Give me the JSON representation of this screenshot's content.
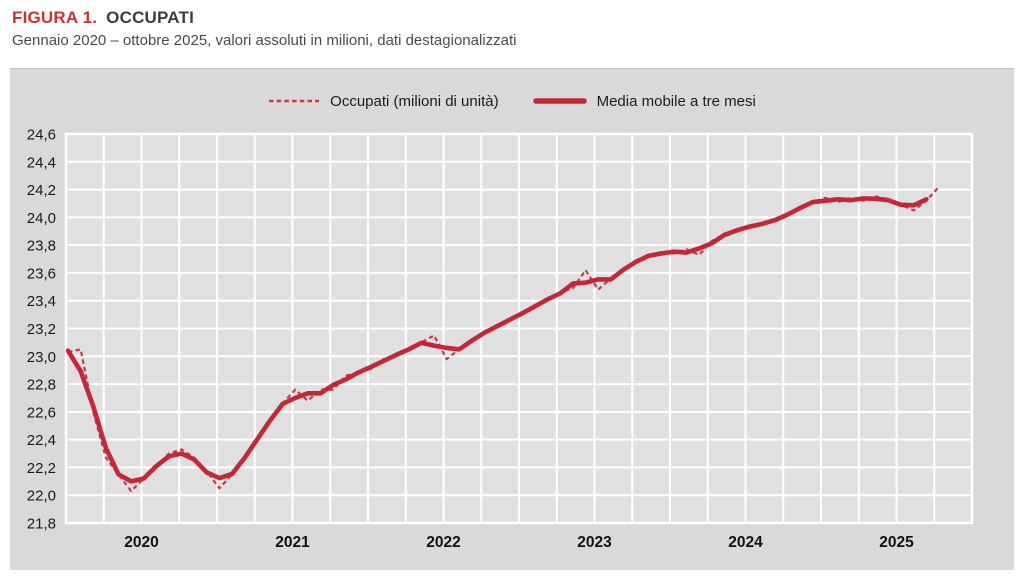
{
  "figure": {
    "label": "FIGURA 1.",
    "title": "OCCUPATI",
    "subtitle": "Gennaio 2020 – ottobre 2025, valori assoluti in milioni, dati destagionalizzati"
  },
  "legend": {
    "items": [
      {
        "label": "Occupati (milioni di unità)",
        "style": "dashed"
      },
      {
        "label": "Media mobile a tre mesi",
        "style": "solid"
      }
    ]
  },
  "colors": {
    "accent_red": "#c73331",
    "line_dashed": "#c9394a",
    "line_solid": "#c32837",
    "panel_bg": "#d9d9d9",
    "plot_bg": "#e0e0e0",
    "grid": "#ffffff",
    "text_dark": "#3d3d3d",
    "axis_text": "#1a1a1a"
  },
  "chart_data": {
    "type": "line",
    "title": "Occupati",
    "x_frequency": "monthly",
    "x_start": "Gennaio 2020",
    "x_end": "Ottobre 2025",
    "year_labels": [
      "2020",
      "2021",
      "2022",
      "2023",
      "2024",
      "2025"
    ],
    "months_per_gridline": 3,
    "x_total_months_span": 72,
    "ylim": [
      21.8,
      24.6
    ],
    "y_tick_step": 0.2,
    "y_tick_labels": [
      "24,6",
      "24,4",
      "24,2",
      "24,0",
      "23,8",
      "23,6",
      "23,4",
      "23,2",
      "23,0",
      "22,8",
      "22,6",
      "22,4",
      "22,2",
      "22,0",
      "21,8"
    ],
    "grid": "on",
    "legend_position": "top",
    "series": [
      {
        "name": "Occupati (milioni di unità)",
        "style": "dashed",
        "values": [
          23.03,
          23.05,
          22.6,
          22.27,
          22.15,
          22.03,
          22.12,
          22.21,
          22.3,
          22.33,
          22.27,
          22.17,
          22.05,
          22.15,
          22.26,
          22.4,
          22.55,
          22.66,
          22.76,
          22.68,
          22.76,
          22.76,
          22.86,
          22.88,
          22.91,
          22.98,
          23.01,
          23.04,
          23.1,
          23.15,
          22.98,
          23.05,
          23.12,
          23.17,
          23.22,
          23.26,
          23.31,
          23.36,
          23.41,
          23.46,
          23.49,
          23.62,
          23.48,
          23.56,
          23.62,
          23.69,
          23.73,
          23.75,
          23.74,
          23.77,
          23.73,
          23.83,
          23.88,
          23.91,
          23.93,
          23.96,
          23.97,
          24.01,
          24.08,
          24.11,
          24.14,
          24.11,
          24.14,
          24.12,
          24.15,
          24.13,
          24.09,
          24.05,
          24.12,
          24.22
        ]
      },
      {
        "name": "Media mobile a tre mesi",
        "style": "solid",
        "derived_from": "centered 3-month moving average of Occupati"
      }
    ]
  }
}
